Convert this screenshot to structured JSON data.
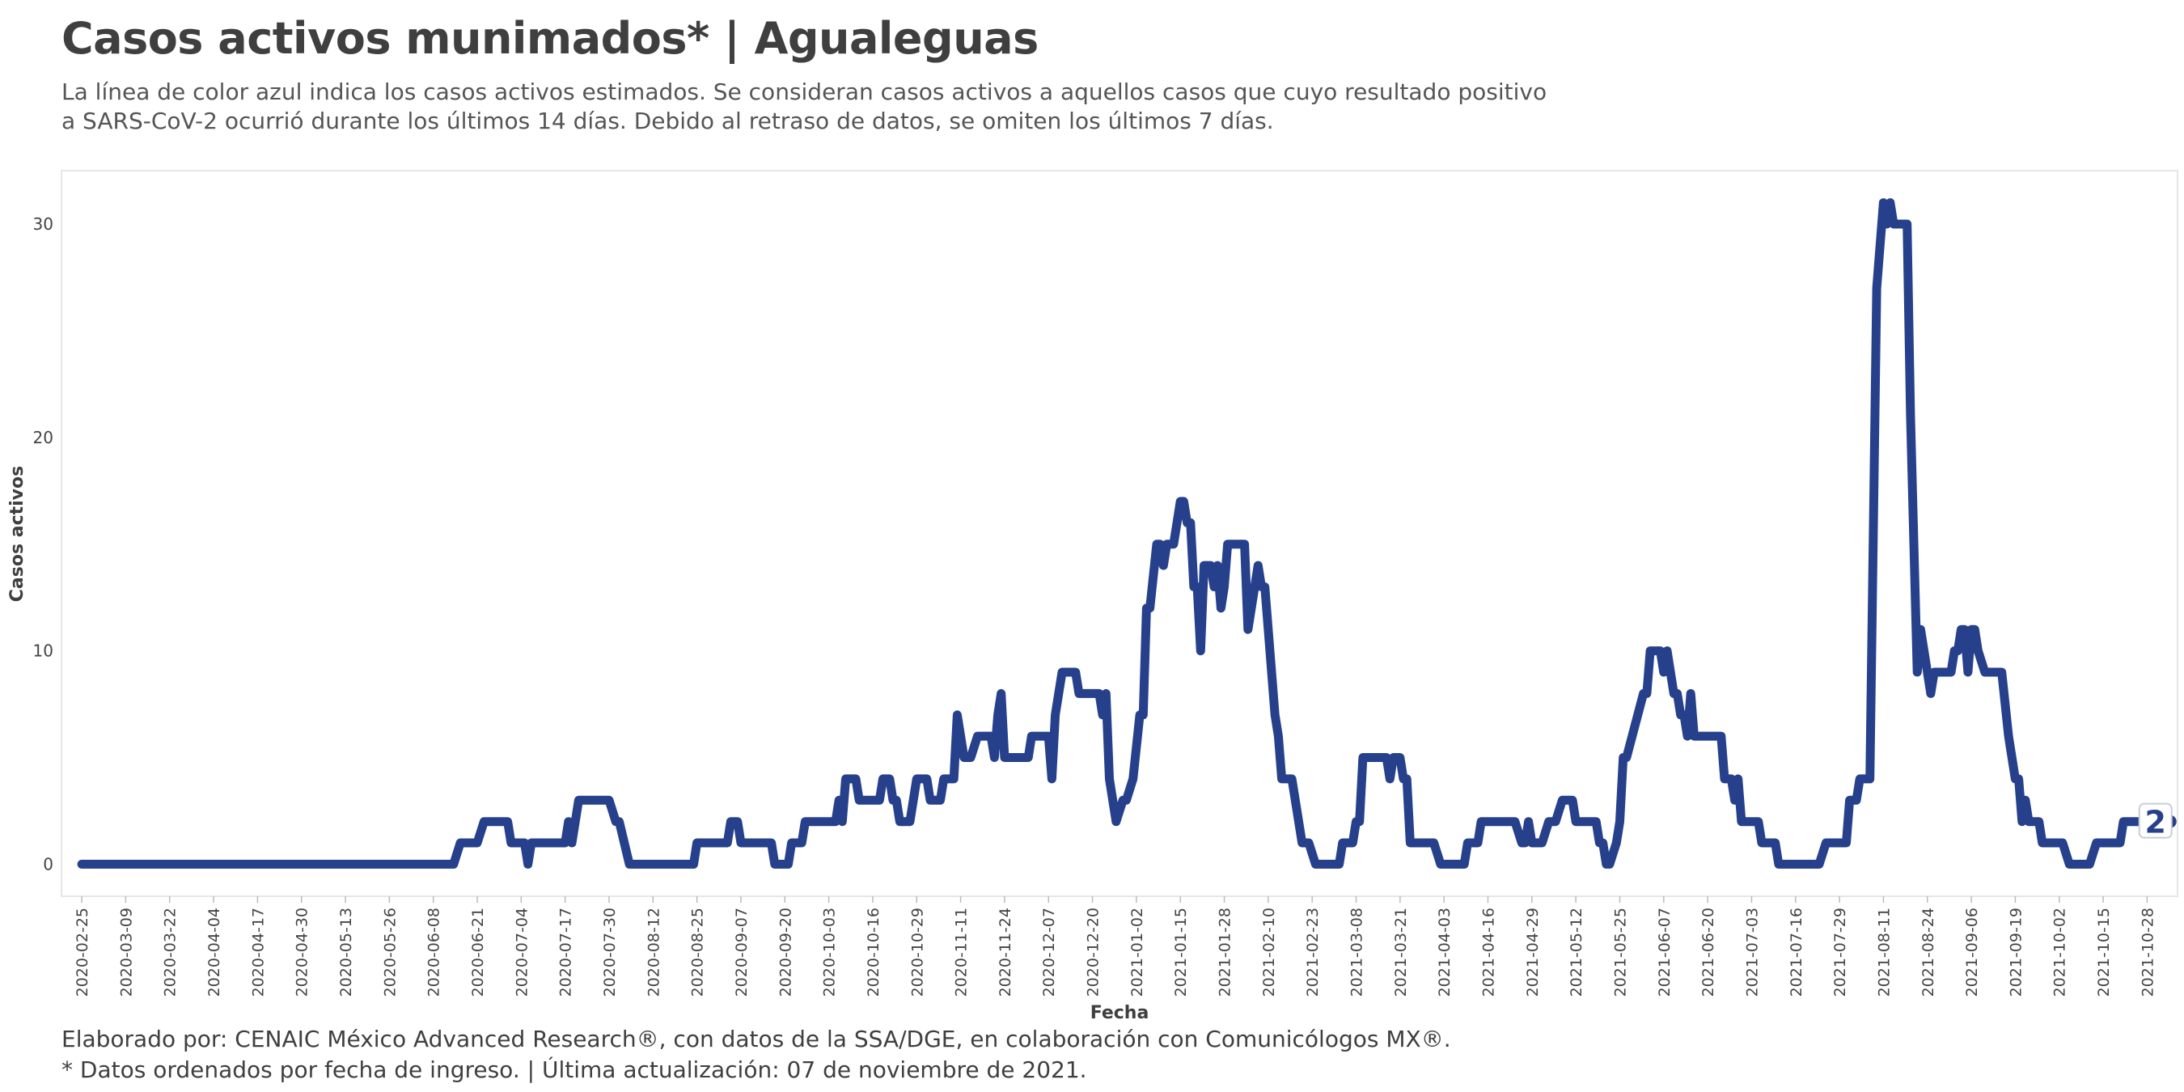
{
  "header": {
    "title": "Casos activos munimados* | Agualeguas",
    "subtitle_lines": [
      "La línea de color azul indica los casos activos estimados. Se consideran casos activos a aquellos casos que cuyo resultado positivo",
      "a SARS-CoV-2 ocurrió durante los últimos 14 días. Debido al retraso de datos, se omiten los últimos 7 días."
    ]
  },
  "caption": {
    "lines": [
      "Elaborado por: CENAIC México Advanced Research®, con datos de la SSA/DGE, en colaboración con Comunicólogos MX®.",
      "* Datos ordenados por fecha de ingreso. | Última actualización: 07 de noviembre de 2021."
    ]
  },
  "colors": {
    "line": "#26408b",
    "panel_border": "#e6e6e6",
    "grid": "none"
  },
  "chart_data": {
    "type": "line",
    "xlabel": "Fecha",
    "ylabel": "Casos activos",
    "grid": false,
    "legend": "none",
    "yticks": [
      0,
      10,
      20,
      30
    ],
    "ylim": [
      -1.5,
      32.5
    ],
    "xlim": [
      "2020-02-19",
      "2021-11-06"
    ],
    "xticks": [
      "2020-02-25",
      "2020-03-09",
      "2020-03-22",
      "2020-04-04",
      "2020-04-17",
      "2020-04-30",
      "2020-05-13",
      "2020-05-26",
      "2020-06-08",
      "2020-06-21",
      "2020-07-04",
      "2020-07-17",
      "2020-07-30",
      "2020-08-12",
      "2020-08-25",
      "2020-09-07",
      "2020-09-20",
      "2020-10-03",
      "2020-10-16",
      "2020-10-29",
      "2020-11-11",
      "2020-11-24",
      "2020-12-07",
      "2020-12-20",
      "2021-01-02",
      "2021-01-15",
      "2021-01-28",
      "2021-02-10",
      "2021-02-23",
      "2021-03-08",
      "2021-03-21",
      "2021-04-03",
      "2021-04-16",
      "2021-04-29",
      "2021-05-12",
      "2021-05-25",
      "2021-06-07",
      "2021-06-20",
      "2021-07-03",
      "2021-07-16",
      "2021-07-29",
      "2021-08-11",
      "2021-08-24",
      "2021-09-06",
      "2021-09-19",
      "2021-10-02",
      "2021-10-15",
      "2021-10-28"
    ],
    "last_value_label": "2",
    "series": [
      {
        "points": [
          [
            "2020-02-25",
            0
          ],
          [
            "2020-06-14",
            0
          ],
          [
            "2020-06-16",
            1
          ],
          [
            "2020-06-21",
            1
          ],
          [
            "2020-06-23",
            2
          ],
          [
            "2020-06-30",
            2
          ],
          [
            "2020-07-01",
            1
          ],
          [
            "2020-07-05",
            1
          ],
          [
            "2020-07-06",
            0
          ],
          [
            "2020-07-07",
            1
          ],
          [
            "2020-07-17",
            1
          ],
          [
            "2020-07-18",
            2
          ],
          [
            "2020-07-19",
            1
          ],
          [
            "2020-07-21",
            3
          ],
          [
            "2020-07-30",
            3
          ],
          [
            "2020-08-01",
            2
          ],
          [
            "2020-08-02",
            2
          ],
          [
            "2020-08-05",
            0
          ],
          [
            "2020-08-24",
            0
          ],
          [
            "2020-08-25",
            1
          ],
          [
            "2020-09-03",
            1
          ],
          [
            "2020-09-04",
            2
          ],
          [
            "2020-09-06",
            2
          ],
          [
            "2020-09-07",
            1
          ],
          [
            "2020-09-16",
            1
          ],
          [
            "2020-09-17",
            0
          ],
          [
            "2020-09-21",
            0
          ],
          [
            "2020-09-22",
            1
          ],
          [
            "2020-09-25",
            1
          ],
          [
            "2020-09-26",
            2
          ],
          [
            "2020-10-05",
            2
          ],
          [
            "2020-10-06",
            3
          ],
          [
            "2020-10-07",
            2
          ],
          [
            "2020-10-08",
            4
          ],
          [
            "2020-10-11",
            4
          ],
          [
            "2020-10-12",
            3
          ],
          [
            "2020-10-18",
            3
          ],
          [
            "2020-10-19",
            4
          ],
          [
            "2020-10-21",
            4
          ],
          [
            "2020-10-22",
            3
          ],
          [
            "2020-10-23",
            3
          ],
          [
            "2020-10-24",
            2
          ],
          [
            "2020-10-27",
            2
          ],
          [
            "2020-10-29",
            4
          ],
          [
            "2020-11-01",
            4
          ],
          [
            "2020-11-02",
            3
          ],
          [
            "2020-11-05",
            3
          ],
          [
            "2020-11-06",
            4
          ],
          [
            "2020-11-09",
            4
          ],
          [
            "2020-11-10",
            7
          ],
          [
            "2020-11-12",
            5
          ],
          [
            "2020-11-14",
            5
          ],
          [
            "2020-11-16",
            6
          ],
          [
            "2020-11-20",
            6
          ],
          [
            "2020-11-21",
            5
          ],
          [
            "2020-11-22",
            7
          ],
          [
            "2020-11-23",
            8
          ],
          [
            "2020-11-24",
            5
          ],
          [
            "2020-12-01",
            5
          ],
          [
            "2020-12-02",
            6
          ],
          [
            "2020-12-07",
            6
          ],
          [
            "2020-12-08",
            4
          ],
          [
            "2020-12-09",
            7
          ],
          [
            "2020-12-11",
            9
          ],
          [
            "2020-12-15",
            9
          ],
          [
            "2020-12-16",
            8
          ],
          [
            "2020-12-22",
            8
          ],
          [
            "2020-12-23",
            7
          ],
          [
            "2020-12-24",
            8
          ],
          [
            "2020-12-25",
            4
          ],
          [
            "2020-12-27",
            2
          ],
          [
            "2020-12-29",
            3
          ],
          [
            "2020-12-30",
            3
          ],
          [
            "2021-01-01",
            4
          ],
          [
            "2021-01-03",
            7
          ],
          [
            "2021-01-04",
            7
          ],
          [
            "2021-01-05",
            12
          ],
          [
            "2021-01-06",
            12
          ],
          [
            "2021-01-08",
            15
          ],
          [
            "2021-01-09",
            15
          ],
          [
            "2021-01-10",
            14
          ],
          [
            "2021-01-11",
            15
          ],
          [
            "2021-01-13",
            15
          ],
          [
            "2021-01-15",
            17
          ],
          [
            "2021-01-16",
            17
          ],
          [
            "2021-01-17",
            16
          ],
          [
            "2021-01-18",
            16
          ],
          [
            "2021-01-19",
            13
          ],
          [
            "2021-01-20",
            13
          ],
          [
            "2021-01-21",
            10
          ],
          [
            "2021-01-22",
            14
          ],
          [
            "2021-01-24",
            14
          ],
          [
            "2021-01-25",
            13
          ],
          [
            "2021-01-26",
            14
          ],
          [
            "2021-01-27",
            12
          ],
          [
            "2021-01-28",
            13
          ],
          [
            "2021-01-29",
            15
          ],
          [
            "2021-02-03",
            15
          ],
          [
            "2021-02-04",
            11
          ],
          [
            "2021-02-05",
            12
          ],
          [
            "2021-02-07",
            14
          ],
          [
            "2021-02-08",
            13
          ],
          [
            "2021-02-09",
            13
          ],
          [
            "2021-02-12",
            7
          ],
          [
            "2021-02-13",
            6
          ],
          [
            "2021-02-14",
            4
          ],
          [
            "2021-02-17",
            4
          ],
          [
            "2021-02-18",
            3
          ],
          [
            "2021-02-20",
            1
          ],
          [
            "2021-02-22",
            1
          ],
          [
            "2021-02-24",
            0
          ],
          [
            "2021-03-03",
            0
          ],
          [
            "2021-03-04",
            1
          ],
          [
            "2021-03-07",
            1
          ],
          [
            "2021-03-08",
            2
          ],
          [
            "2021-03-09",
            2
          ],
          [
            "2021-03-10",
            5
          ],
          [
            "2021-03-17",
            5
          ],
          [
            "2021-03-18",
            4
          ],
          [
            "2021-03-19",
            5
          ],
          [
            "2021-03-21",
            5
          ],
          [
            "2021-03-22",
            4
          ],
          [
            "2021-03-23",
            4
          ],
          [
            "2021-03-24",
            1
          ],
          [
            "2021-03-31",
            1
          ],
          [
            "2021-04-02",
            0
          ],
          [
            "2021-04-09",
            0
          ],
          [
            "2021-04-10",
            1
          ],
          [
            "2021-04-13",
            1
          ],
          [
            "2021-04-14",
            2
          ],
          [
            "2021-04-24",
            2
          ],
          [
            "2021-04-26",
            1
          ],
          [
            "2021-04-27",
            1
          ],
          [
            "2021-04-28",
            2
          ],
          [
            "2021-04-29",
            1
          ],
          [
            "2021-05-02",
            1
          ],
          [
            "2021-05-04",
            2
          ],
          [
            "2021-05-06",
            2
          ],
          [
            "2021-05-08",
            3
          ],
          [
            "2021-05-11",
            3
          ],
          [
            "2021-05-12",
            2
          ],
          [
            "2021-05-18",
            2
          ],
          [
            "2021-05-19",
            1
          ],
          [
            "2021-05-20",
            1
          ],
          [
            "2021-05-21",
            0
          ],
          [
            "2021-05-22",
            0
          ],
          [
            "2021-05-24",
            1
          ],
          [
            "2021-05-25",
            2
          ],
          [
            "2021-05-26",
            5
          ],
          [
            "2021-05-27",
            5
          ],
          [
            "2021-06-01",
            8
          ],
          [
            "2021-06-02",
            8
          ],
          [
            "2021-06-03",
            10
          ],
          [
            "2021-06-06",
            10
          ],
          [
            "2021-06-07",
            9
          ],
          [
            "2021-06-08",
            10
          ],
          [
            "2021-06-10",
            8
          ],
          [
            "2021-06-11",
            8
          ],
          [
            "2021-06-12",
            7
          ],
          [
            "2021-06-13",
            7
          ],
          [
            "2021-06-14",
            6
          ],
          [
            "2021-06-15",
            8
          ],
          [
            "2021-06-16",
            6
          ],
          [
            "2021-06-24",
            6
          ],
          [
            "2021-06-25",
            4
          ],
          [
            "2021-06-27",
            4
          ],
          [
            "2021-06-28",
            3
          ],
          [
            "2021-06-29",
            4
          ],
          [
            "2021-06-30",
            2
          ],
          [
            "2021-07-05",
            2
          ],
          [
            "2021-07-06",
            1
          ],
          [
            "2021-07-10",
            1
          ],
          [
            "2021-07-11",
            0
          ],
          [
            "2021-07-23",
            0
          ],
          [
            "2021-07-25",
            1
          ],
          [
            "2021-07-31",
            1
          ],
          [
            "2021-08-01",
            3
          ],
          [
            "2021-08-03",
            3
          ],
          [
            "2021-08-04",
            4
          ],
          [
            "2021-08-07",
            4
          ],
          [
            "2021-08-09",
            27
          ],
          [
            "2021-08-11",
            31
          ],
          [
            "2021-08-12",
            30
          ],
          [
            "2021-08-13",
            31
          ],
          [
            "2021-08-14",
            30
          ],
          [
            "2021-08-18",
            30
          ],
          [
            "2021-08-19",
            21
          ],
          [
            "2021-08-21",
            9
          ],
          [
            "2021-08-22",
            11
          ],
          [
            "2021-08-25",
            8
          ],
          [
            "2021-08-26",
            9
          ],
          [
            "2021-08-31",
            9
          ],
          [
            "2021-09-01",
            10
          ],
          [
            "2021-09-02",
            10
          ],
          [
            "2021-09-03",
            11
          ],
          [
            "2021-09-04",
            11
          ],
          [
            "2021-09-05",
            9
          ],
          [
            "2021-09-06",
            11
          ],
          [
            "2021-09-07",
            11
          ],
          [
            "2021-09-08",
            10
          ],
          [
            "2021-09-10",
            9
          ],
          [
            "2021-09-15",
            9
          ],
          [
            "2021-09-17",
            6
          ],
          [
            "2021-09-19",
            4
          ],
          [
            "2021-09-20",
            4
          ],
          [
            "2021-09-21",
            2
          ],
          [
            "2021-09-22",
            3
          ],
          [
            "2021-09-23",
            2
          ],
          [
            "2021-09-26",
            2
          ],
          [
            "2021-09-27",
            1
          ],
          [
            "2021-10-03",
            1
          ],
          [
            "2021-10-05",
            0
          ],
          [
            "2021-10-11",
            0
          ],
          [
            "2021-10-13",
            1
          ],
          [
            "2021-10-20",
            1
          ],
          [
            "2021-10-21",
            2
          ],
          [
            "2021-10-27",
            2
          ],
          [
            "2021-10-30",
            2
          ]
        ]
      }
    ]
  }
}
